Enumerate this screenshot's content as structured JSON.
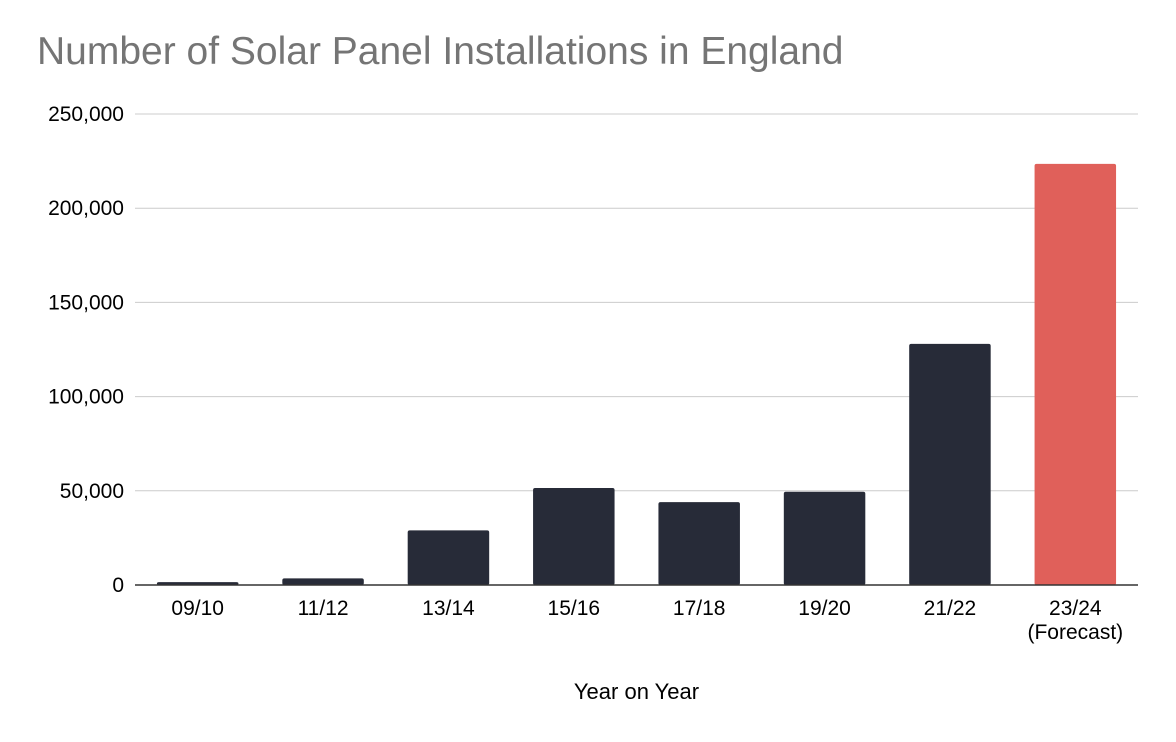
{
  "chart_data": {
    "type": "bar",
    "title": "Number of Solar Panel Installations in England",
    "xlabel": "Year on Year",
    "ylabel": "",
    "categories": [
      "09/10",
      "11/12",
      "13/14",
      "15/16",
      "17/18",
      "19/20",
      "21/22",
      "23/24\n(Forecast)"
    ],
    "series": [
      {
        "values": [
          1500,
          3500,
          29000,
          51500,
          44000,
          49500,
          128000,
          223500
        ],
        "colors": [
          "#272b38",
          "#272b38",
          "#272b38",
          "#272b38",
          "#272b38",
          "#272b38",
          "#272b38",
          "#e0605a"
        ]
      }
    ],
    "ylim": [
      0,
      250000
    ],
    "yticks": [
      0,
      50000,
      100000,
      150000,
      200000,
      250000
    ],
    "ytick_labels": [
      "0",
      "50,000",
      "100,000",
      "150,000",
      "200,000",
      "250,000"
    ],
    "grid": true,
    "legend": "none"
  }
}
